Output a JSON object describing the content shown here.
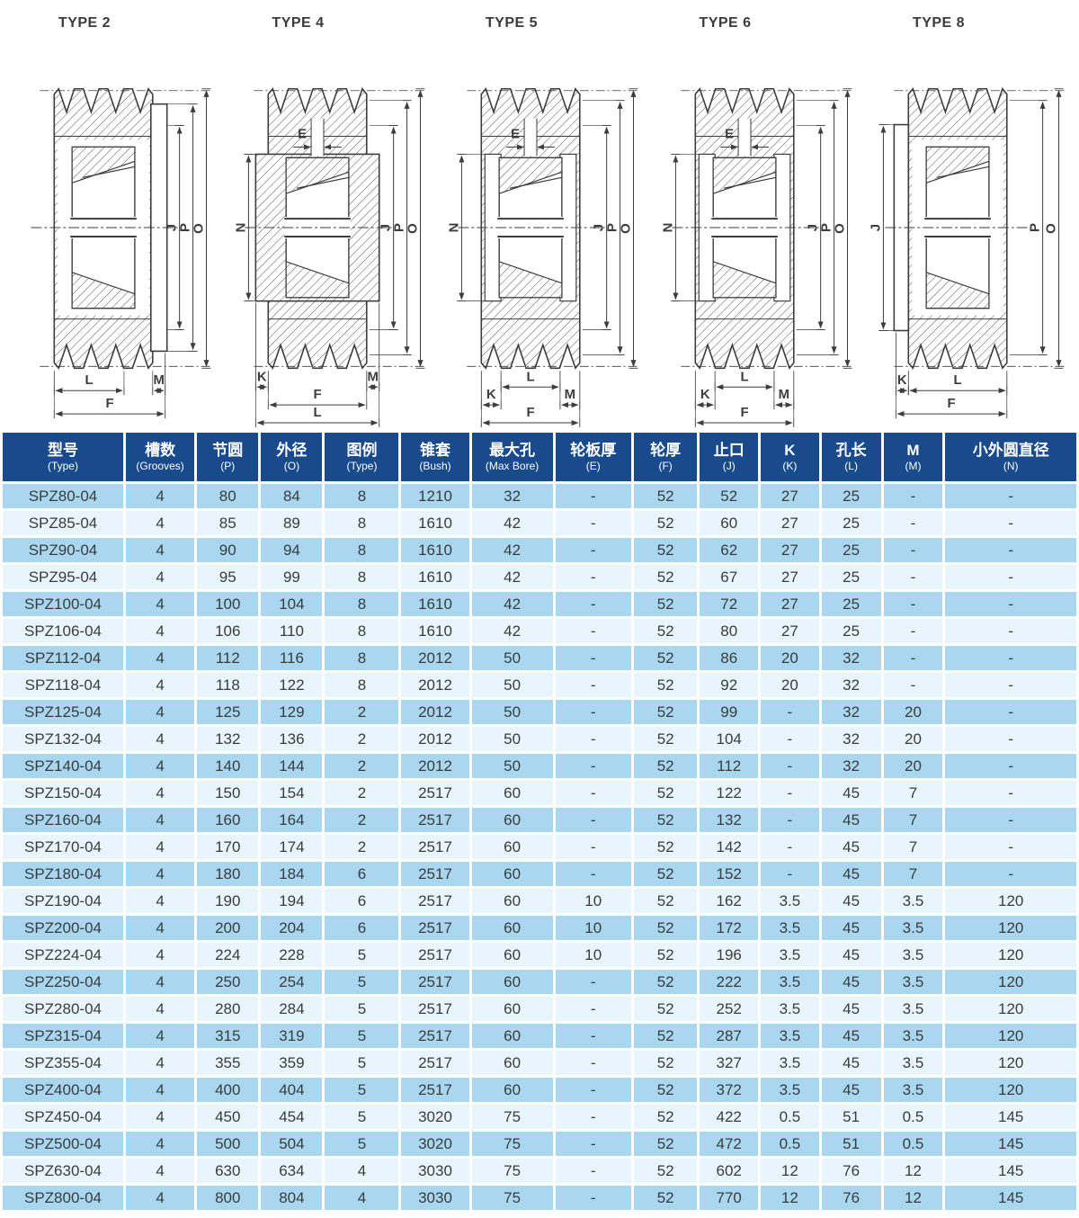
{
  "diagrams": [
    {
      "title": "TYPE 2",
      "type_id": "2",
      "dims": {
        "left": [],
        "right": [
          "J",
          "P",
          "O"
        ],
        "top": null,
        "bottom_rows": [
          [
            "L",
            "M"
          ],
          [
            "F"
          ]
        ]
      }
    },
    {
      "title": "TYPE 4",
      "type_id": "4",
      "dims": {
        "left": [
          "N"
        ],
        "right": [
          "J",
          "P",
          "O"
        ],
        "top": "E",
        "bottom_rows": [
          [
            "K",
            "M"
          ],
          [
            "F"
          ],
          [
            "L"
          ]
        ]
      }
    },
    {
      "title": "TYPE 5",
      "type_id": "5",
      "dims": {
        "left": [
          "N"
        ],
        "right": [
          "J",
          "P",
          "O"
        ],
        "top": "E",
        "bottom_rows": [
          [
            "L"
          ],
          [
            "K",
            "M"
          ],
          [
            "F"
          ]
        ]
      }
    },
    {
      "title": "TYPE 6",
      "type_id": "6",
      "dims": {
        "left": [
          "N"
        ],
        "right": [
          "J",
          "P",
          "O"
        ],
        "top": "E",
        "bottom_rows": [
          [
            "L"
          ],
          [
            "K",
            "M"
          ],
          [
            "F"
          ]
        ]
      }
    },
    {
      "title": "TYPE 8",
      "type_id": "8",
      "dims": {
        "left": [
          "J"
        ],
        "right": [
          "P",
          "O"
        ],
        "top": null,
        "bottom_rows": [
          [
            "K",
            "L"
          ],
          [
            "F"
          ]
        ]
      }
    }
  ],
  "table": {
    "columns": [
      {
        "label": "型号",
        "sub": "(Type)"
      },
      {
        "label": "槽数",
        "sub": "(Grooves)"
      },
      {
        "label": "节圆",
        "sub": "(P)"
      },
      {
        "label": "外径",
        "sub": "(O)"
      },
      {
        "label": "图例",
        "sub": "(Type)"
      },
      {
        "label": "锥套",
        "sub": "(Bush)"
      },
      {
        "label": "最大孔",
        "sub": "(Max Bore)"
      },
      {
        "label": "轮板厚",
        "sub": "(E)"
      },
      {
        "label": "轮厚",
        "sub": "(F)"
      },
      {
        "label": "止口",
        "sub": "(J)"
      },
      {
        "label": "K",
        "sub": "(K)"
      },
      {
        "label": "孔长",
        "sub": "(L)"
      },
      {
        "label": "M",
        "sub": "(M)"
      },
      {
        "label": "小外圆直径",
        "sub": "(N)"
      }
    ],
    "col_widths_pct": [
      11.6,
      6.6,
      5.9,
      5.9,
      7.1,
      6.5,
      7.8,
      7.3,
      6.1,
      5.6,
      5.6,
      5.7,
      5.7,
      12.6
    ],
    "rows": [
      [
        "SPZ80-04",
        "4",
        "80",
        "84",
        "8",
        "1210",
        "32",
        "-",
        "52",
        "52",
        "27",
        "25",
        "-",
        "-"
      ],
      [
        "SPZ85-04",
        "4",
        "85",
        "89",
        "8",
        "1610",
        "42",
        "-",
        "52",
        "60",
        "27",
        "25",
        "-",
        "-"
      ],
      [
        "SPZ90-04",
        "4",
        "90",
        "94",
        "8",
        "1610",
        "42",
        "-",
        "52",
        "62",
        "27",
        "25",
        "-",
        "-"
      ],
      [
        "SPZ95-04",
        "4",
        "95",
        "99",
        "8",
        "1610",
        "42",
        "-",
        "52",
        "67",
        "27",
        "25",
        "-",
        "-"
      ],
      [
        "SPZ100-04",
        "4",
        "100",
        "104",
        "8",
        "1610",
        "42",
        "-",
        "52",
        "72",
        "27",
        "25",
        "-",
        "-"
      ],
      [
        "SPZ106-04",
        "4",
        "106",
        "110",
        "8",
        "1610",
        "42",
        "-",
        "52",
        "80",
        "27",
        "25",
        "-",
        "-"
      ],
      [
        "SPZ112-04",
        "4",
        "112",
        "116",
        "8",
        "2012",
        "50",
        "-",
        "52",
        "86",
        "20",
        "32",
        "-",
        "-"
      ],
      [
        "SPZ118-04",
        "4",
        "118",
        "122",
        "8",
        "2012",
        "50",
        "-",
        "52",
        "92",
        "20",
        "32",
        "-",
        "-"
      ],
      [
        "SPZ125-04",
        "4",
        "125",
        "129",
        "2",
        "2012",
        "50",
        "-",
        "52",
        "99",
        "-",
        "32",
        "20",
        "-"
      ],
      [
        "SPZ132-04",
        "4",
        "132",
        "136",
        "2",
        "2012",
        "50",
        "-",
        "52",
        "104",
        "-",
        "32",
        "20",
        "-"
      ],
      [
        "SPZ140-04",
        "4",
        "140",
        "144",
        "2",
        "2012",
        "50",
        "-",
        "52",
        "112",
        "-",
        "32",
        "20",
        "-"
      ],
      [
        "SPZ150-04",
        "4",
        "150",
        "154",
        "2",
        "2517",
        "60",
        "-",
        "52",
        "122",
        "-",
        "45",
        "7",
        "-"
      ],
      [
        "SPZ160-04",
        "4",
        "160",
        "164",
        "2",
        "2517",
        "60",
        "-",
        "52",
        "132",
        "-",
        "45",
        "7",
        "-"
      ],
      [
        "SPZ170-04",
        "4",
        "170",
        "174",
        "2",
        "2517",
        "60",
        "-",
        "52",
        "142",
        "-",
        "45",
        "7",
        "-"
      ],
      [
        "SPZ180-04",
        "4",
        "180",
        "184",
        "6",
        "2517",
        "60",
        "-",
        "52",
        "152",
        "-",
        "45",
        "7",
        "-"
      ],
      [
        "SPZ190-04",
        "4",
        "190",
        "194",
        "6",
        "2517",
        "60",
        "10",
        "52",
        "162",
        "3.5",
        "45",
        "3.5",
        "120"
      ],
      [
        "SPZ200-04",
        "4",
        "200",
        "204",
        "6",
        "2517",
        "60",
        "10",
        "52",
        "172",
        "3.5",
        "45",
        "3.5",
        "120"
      ],
      [
        "SPZ224-04",
        "4",
        "224",
        "228",
        "5",
        "2517",
        "60",
        "10",
        "52",
        "196",
        "3.5",
        "45",
        "3.5",
        "120"
      ],
      [
        "SPZ250-04",
        "4",
        "250",
        "254",
        "5",
        "2517",
        "60",
        "-",
        "52",
        "222",
        "3.5",
        "45",
        "3.5",
        "120"
      ],
      [
        "SPZ280-04",
        "4",
        "280",
        "284",
        "5",
        "2517",
        "60",
        "-",
        "52",
        "252",
        "3.5",
        "45",
        "3.5",
        "120"
      ],
      [
        "SPZ315-04",
        "4",
        "315",
        "319",
        "5",
        "2517",
        "60",
        "-",
        "52",
        "287",
        "3.5",
        "45",
        "3.5",
        "120"
      ],
      [
        "SPZ355-04",
        "4",
        "355",
        "359",
        "5",
        "2517",
        "60",
        "-",
        "52",
        "327",
        "3.5",
        "45",
        "3.5",
        "120"
      ],
      [
        "SPZ400-04",
        "4",
        "400",
        "404",
        "5",
        "2517",
        "60",
        "-",
        "52",
        "372",
        "3.5",
        "45",
        "3.5",
        "120"
      ],
      [
        "SPZ450-04",
        "4",
        "450",
        "454",
        "5",
        "3020",
        "75",
        "-",
        "52",
        "422",
        "0.5",
        "51",
        "0.5",
        "145"
      ],
      [
        "SPZ500-04",
        "4",
        "500",
        "504",
        "5",
        "3020",
        "75",
        "-",
        "52",
        "472",
        "0.5",
        "51",
        "0.5",
        "145"
      ],
      [
        "SPZ630-04",
        "4",
        "630",
        "634",
        "4",
        "3030",
        "75",
        "-",
        "52",
        "602",
        "12",
        "76",
        "12",
        "145"
      ],
      [
        "SPZ800-04",
        "4",
        "800",
        "804",
        "4",
        "3030",
        "75",
        "-",
        "52",
        "770",
        "12",
        "76",
        "12",
        "145"
      ]
    ],
    "colors": {
      "header_bg": "#184a8c",
      "header_text": "#ffffff",
      "row_odd": "#a9d7f0",
      "row_even": "#e9f5fd",
      "cell_text": "#3b3b3b"
    }
  }
}
